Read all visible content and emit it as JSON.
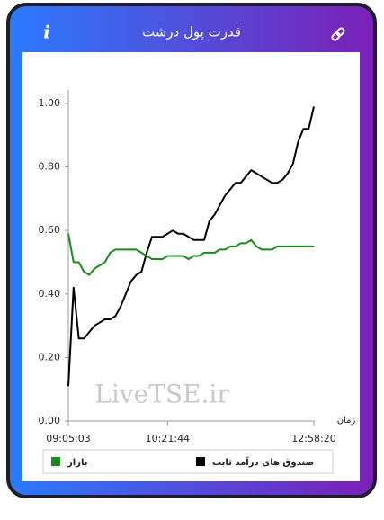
{
  "header": {
    "icon": "i"
  },
  "chart_data": {
    "type": "line",
    "title": "قدرت پول درشت",
    "watermark": "LiveTSE.ir",
    "x_label": "زمان",
    "categories": [
      "09:05:03",
      null,
      null,
      null,
      null,
      null,
      null,
      null,
      null,
      null,
      null,
      null,
      null,
      null,
      null,
      null,
      null,
      null,
      null,
      "10:21:44",
      null,
      null,
      null,
      null,
      null,
      null,
      null,
      null,
      null,
      null,
      null,
      null,
      null,
      null,
      null,
      null,
      null,
      null,
      null,
      null,
      null,
      null,
      null,
      null,
      null,
      null,
      null,
      "12:58:20"
    ],
    "ylim": [
      0,
      1
    ],
    "yticks": [
      {
        "value": 0,
        "label": "0.00"
      },
      {
        "value": 0.2,
        "label": "0.20"
      },
      {
        "value": 0.4,
        "label": "0.40"
      },
      {
        "value": 0.6,
        "label": "0.60"
      },
      {
        "value": 0.8,
        "label": "0.80"
      },
      {
        "value": 1,
        "label": "1.00"
      }
    ],
    "series": [
      {
        "name": "صندوق های درآمد ثابت",
        "color": "#000000",
        "values": [
          0.11,
          0.42,
          0.26,
          0.26,
          0.28,
          0.3,
          0.31,
          0.32,
          0.32,
          0.33,
          0.36,
          0.4,
          0.44,
          0.46,
          0.47,
          0.53,
          0.58,
          0.58,
          0.58,
          0.59,
          0.6,
          0.59,
          0.59,
          0.58,
          0.57,
          0.57,
          0.57,
          0.63,
          0.65,
          0.68,
          0.71,
          0.73,
          0.75,
          0.75,
          0.77,
          0.79,
          0.78,
          0.77,
          0.76,
          0.75,
          0.75,
          0.76,
          0.78,
          0.81,
          0.88,
          0.92,
          0.92,
          0.99
        ]
      },
      {
        "name": "بازار",
        "color": "#1a8a1a",
        "values": [
          0.59,
          0.5,
          0.5,
          0.47,
          0.46,
          0.48,
          0.49,
          0.5,
          0.53,
          0.54,
          0.54,
          0.54,
          0.54,
          0.54,
          0.53,
          0.52,
          0.51,
          0.51,
          0.51,
          0.52,
          0.52,
          0.52,
          0.52,
          0.51,
          0.52,
          0.52,
          0.53,
          0.53,
          0.53,
          0.54,
          0.54,
          0.55,
          0.55,
          0.56,
          0.56,
          0.57,
          0.55,
          0.54,
          0.54,
          0.54,
          0.55,
          0.55,
          0.55,
          0.55,
          0.55,
          0.55,
          0.55,
          0.55
        ]
      }
    ]
  }
}
